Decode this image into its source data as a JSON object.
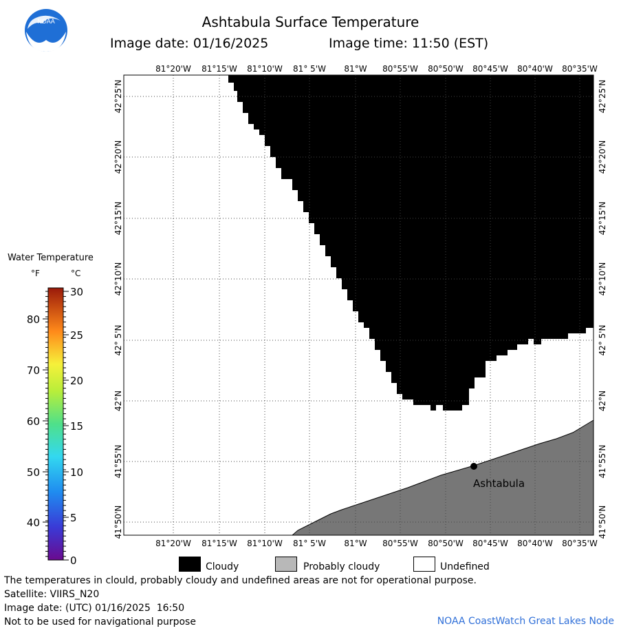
{
  "header": {
    "title": "Ashtabula Surface Temperature",
    "image_date": "Image date: 01/16/2025",
    "image_time": "Image time: 11:50 (EST)"
  },
  "logo": {
    "text": "NOAA"
  },
  "map": {
    "top_axis_labels": [
      "81°20'W",
      "81°15'W",
      "81°10'W",
      "81° 5'W",
      "81°W",
      "80°55'W",
      "80°50'W",
      "80°45'W",
      "80°40'W",
      "80°35'W"
    ],
    "bottom_axis_labels": [
      "81°20'W",
      "81°15'W",
      "81°10'W",
      "81° 5'W",
      "81°W",
      "80°55'W",
      "80°50'W",
      "80°45'W",
      "80°40'W",
      "80°35'W"
    ],
    "left_axis_labels": [
      "42°25'N",
      "42°20'N",
      "42°15'N",
      "42°10'N",
      "42° 5'N",
      "42°N",
      "41°55'N",
      "41°50'N"
    ],
    "right_axis_labels": [
      "42°25'N",
      "42°20'N",
      "42°15'N",
      "42°10'N",
      "42° 5'N",
      "42°N",
      "41°55'N",
      "41°50'N"
    ],
    "place_label": "Ashtabula",
    "colors": {
      "cloudy": "#000000",
      "land": "#777777",
      "water_undefined": "#ffffff",
      "grid": "#444444"
    }
  },
  "legend": {
    "title": "Water Temperature",
    "unit_f": "°F",
    "unit_c": "°C",
    "f_ticks": [
      "80",
      "70",
      "60",
      "50",
      "40"
    ],
    "c_ticks": [
      "30",
      "25",
      "20",
      "15",
      "10",
      "5",
      "0"
    ]
  },
  "key": {
    "cloudy": "Cloudy",
    "probably_cloudy": "Probably cloudy",
    "undefined": "Undefined"
  },
  "footer": {
    "disclaimer": "The temperatures in clould, probably cloudy and undefined areas are not for operational purpose.",
    "satellite": "Satellite: VIIRS_N20",
    "utc_date": "Image date: (UTC) 01/16/2025  16:50",
    "nav_warning": "Not to be used for navigational purpose",
    "credit": "NOAA CoastWatch Great Lakes Node"
  }
}
